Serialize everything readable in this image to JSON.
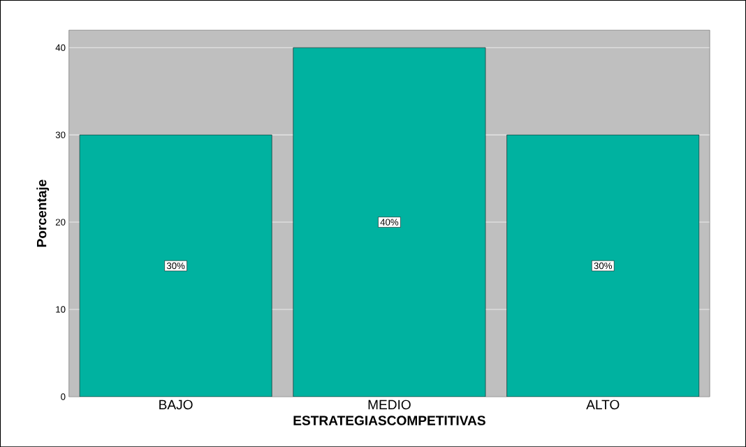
{
  "chart_data": {
    "type": "bar",
    "xlabel": "ESTRATEGIASCOMPETITIVAS",
    "ylabel": "Porcentaje",
    "categories": [
      "BAJO",
      "MEDIO",
      "ALTO"
    ],
    "values": [
      30,
      40,
      30
    ],
    "value_labels": [
      "30%",
      "40%",
      "30%"
    ],
    "color": "#00b2a0",
    "ylim": [
      0,
      42
    ],
    "yticks": [
      0,
      10,
      20,
      30,
      40
    ],
    "grid": "y"
  }
}
